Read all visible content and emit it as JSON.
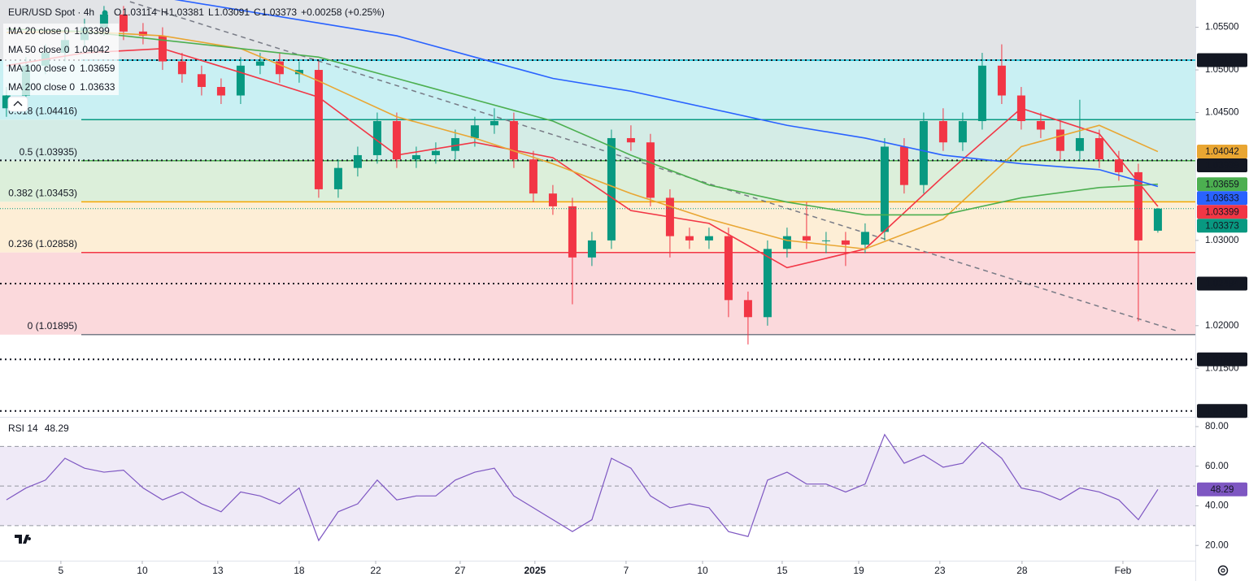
{
  "chart_data": [
    {
      "type": "candlestick",
      "title": "EUR/USD Spot · 4h",
      "ohlc_labels": [
        "O",
        "H",
        "L",
        "C"
      ],
      "change": "+0.00258 (+0.25%)",
      "x": [
        0,
        1,
        2,
        3,
        4,
        5,
        6,
        7,
        8,
        9,
        10,
        11,
        12,
        13,
        14,
        15,
        16,
        17,
        18,
        19,
        20,
        21,
        22,
        23,
        24,
        25,
        26,
        27,
        28,
        29,
        30,
        31,
        32,
        33,
        34,
        35,
        36,
        37,
        38,
        39,
        40,
        41,
        42,
        43,
        44,
        45,
        46,
        47,
        48,
        49,
        50,
        51,
        52,
        53,
        54,
        55,
        56,
        57,
        58,
        59
      ],
      "open": [
        1.0455,
        1.047,
        1.0505,
        1.052,
        1.0535,
        1.055,
        1.0565,
        1.0545,
        1.054,
        1.051,
        1.0495,
        1.048,
        1.047,
        1.0505,
        1.051,
        1.0495,
        1.05,
        1.036,
        1.0385,
        1.04,
        1.044,
        1.0395,
        1.04,
        1.0405,
        1.042,
        1.0435,
        1.044,
        1.0395,
        1.0355,
        1.034,
        1.028,
        1.03,
        1.042,
        1.0415,
        1.035,
        1.0305,
        1.03,
        1.0305,
        1.023,
        1.021,
        1.029,
        1.0305,
        1.03,
        1.03,
        1.0295,
        1.031,
        1.041,
        1.0365,
        1.044,
        1.0415,
        1.044,
        1.0505,
        1.047,
        1.044,
        1.043,
        1.0405,
        1.042,
        1.0395,
        1.038,
        1.03114
      ],
      "high": [
        1.048,
        1.0515,
        1.053,
        1.0545,
        1.056,
        1.0575,
        1.0575,
        1.0555,
        1.055,
        1.052,
        1.0505,
        1.049,
        1.0515,
        1.052,
        1.052,
        1.051,
        1.051,
        1.0395,
        1.041,
        1.045,
        1.045,
        1.041,
        1.0415,
        1.043,
        1.0445,
        1.0455,
        1.045,
        1.0405,
        1.0365,
        1.035,
        1.031,
        1.043,
        1.0435,
        1.0425,
        1.036,
        1.0315,
        1.0315,
        1.0315,
        1.024,
        1.03,
        1.0315,
        1.0345,
        1.031,
        1.031,
        1.032,
        1.042,
        1.042,
        1.045,
        1.0455,
        1.045,
        1.052,
        1.053,
        1.048,
        1.045,
        1.044,
        1.0465,
        1.043,
        1.0405,
        1.039,
        1.03381
      ],
      "low": [
        1.0445,
        1.046,
        1.0495,
        1.051,
        1.0525,
        1.054,
        1.0535,
        1.053,
        1.05,
        1.0485,
        1.047,
        1.046,
        1.046,
        1.0495,
        1.0485,
        1.0485,
        1.035,
        1.035,
        1.0375,
        1.039,
        1.0385,
        1.0385,
        1.039,
        1.0395,
        1.041,
        1.0425,
        1.0385,
        1.0345,
        1.033,
        1.0225,
        1.027,
        1.029,
        1.0405,
        1.034,
        1.028,
        1.029,
        1.029,
        1.021,
        1.0178,
        1.02,
        1.028,
        1.029,
        1.0285,
        1.027,
        1.0285,
        1.03,
        1.0355,
        1.0355,
        1.0405,
        1.0405,
        1.043,
        1.046,
        1.043,
        1.042,
        1.0395,
        1.0395,
        1.0385,
        1.037,
        1.0205,
        1.03091
      ],
      "close": [
        1.047,
        1.0505,
        1.052,
        1.0535,
        1.055,
        1.0565,
        1.0545,
        1.054,
        1.051,
        1.0495,
        1.048,
        1.047,
        1.0505,
        1.051,
        1.0495,
        1.05,
        1.036,
        1.0385,
        1.04,
        1.044,
        1.0395,
        1.04,
        1.0405,
        1.042,
        1.0435,
        1.044,
        1.0395,
        1.0355,
        1.034,
        1.028,
        1.03,
        1.042,
        1.0415,
        1.035,
        1.0305,
        1.03,
        1.0305,
        1.023,
        1.021,
        1.029,
        1.0305,
        1.03,
        1.03,
        1.0295,
        1.031,
        1.041,
        1.0365,
        1.044,
        1.0415,
        1.044,
        1.0505,
        1.047,
        1.044,
        1.043,
        1.0405,
        1.042,
        1.0395,
        1.038,
        1.03,
        1.03373
      ],
      "up_color": "#089981",
      "down_color": "#f23645",
      "xlim": [
        -0.33,
        60.92
      ],
      "ylim": [
        1.0094,
        1.0582
      ],
      "xticks": [
        {
          "value": 2.79,
          "label": "5"
        },
        {
          "value": 6.96,
          "label": "10"
        },
        {
          "value": 10.83,
          "label": "13"
        },
        {
          "value": 15,
          "label": "18"
        },
        {
          "value": 18.92,
          "label": "22"
        },
        {
          "value": 23.25,
          "label": "27"
        },
        {
          "value": 27.08,
          "label": "2025",
          "bold": true
        },
        {
          "value": 31.75,
          "label": "7"
        },
        {
          "value": 35.67,
          "label": "10"
        },
        {
          "value": 39.75,
          "label": "15"
        },
        {
          "value": 43.67,
          "label": "19"
        },
        {
          "value": 47.83,
          "label": "23"
        },
        {
          "value": 52.04,
          "label": "28"
        },
        {
          "value": 57.21,
          "label": "Feb"
        }
      ],
      "yticks": [
        {
          "value": 1.055,
          "label": "1.05500"
        },
        {
          "value": 1.05,
          "label": "1.05000"
        },
        {
          "value": 1.045,
          "label": "1.04500"
        },
        {
          "value": 1.03,
          "label": "1.03000"
        },
        {
          "value": 1.02,
          "label": "1.02000"
        },
        {
          "value": 1.015,
          "label": "1.01500"
        }
      ],
      "series": [
        {
          "name": "MA 20 close 0",
          "color": "#f23645",
          "x": [
            0,
            4,
            8,
            12,
            16,
            20,
            24,
            28,
            32,
            36,
            40,
            44,
            48,
            52,
            56,
            59
          ],
          "values": [
            1.0505,
            1.052,
            1.0525,
            1.0497,
            1.0468,
            1.04,
            1.0415,
            1.0397,
            1.0335,
            1.032,
            1.0268,
            1.029,
            1.0375,
            1.0455,
            1.0425,
            1.03399
          ]
        },
        {
          "name": "MA 50 close 0",
          "color": "#e9a632",
          "x": [
            0,
            4,
            8,
            12,
            16,
            20,
            24,
            28,
            32,
            36,
            40,
            44,
            48,
            52,
            56,
            59
          ],
          "values": [
            1.0544,
            1.0545,
            1.054,
            1.0525,
            1.0487,
            1.0445,
            1.042,
            1.039,
            1.0355,
            1.0325,
            1.03,
            1.029,
            1.0325,
            1.041,
            1.0435,
            1.04042
          ]
        },
        {
          "name": "MA 100 close 0",
          "color": "#4caf50",
          "x": [
            0,
            4,
            8,
            12,
            16,
            20,
            24,
            28,
            32,
            36,
            40,
            44,
            48,
            52,
            56,
            59
          ],
          "values": [
            1.0548,
            1.0545,
            1.0535,
            1.0525,
            1.0515,
            1.049,
            1.0465,
            1.044,
            1.04,
            1.0365,
            1.0345,
            1.033,
            1.033,
            1.035,
            1.0362,
            1.03659
          ]
        },
        {
          "name": "MA 200 close 0",
          "color": "#2962ff",
          "x": [
            8,
            12,
            16,
            20,
            24,
            28,
            32,
            36,
            40,
            44,
            48,
            52,
            56,
            59
          ],
          "values": [
            1.0585,
            1.057,
            1.0555,
            1.054,
            1.0515,
            1.049,
            1.0475,
            1.0455,
            1.0435,
            1.042,
            1.04,
            1.039,
            1.0383,
            1.03633
          ]
        }
      ],
      "fib_above_fill": "#e2e4e7",
      "fib": [
        {
          "value": 1.05115,
          "color": "#00bcd4",
          "fill": "#c9f0f3"
        },
        {
          "value": 1.04416,
          "label": "0.618 (1.04416)",
          "color": "#089981",
          "fill": "#d4ece6"
        },
        {
          "value": 1.03935,
          "label": "0.5 (1.03935)",
          "color": "#4caf50",
          "fill": "#dcefda"
        },
        {
          "value": 1.03453,
          "label": "0.382 (1.03453)",
          "color": "#f7a600",
          "fill": "#fdeed6"
        },
        {
          "value": 1.02858,
          "label": "0.236 (1.02858)",
          "color": "#f23645",
          "fill": "#fbd9dc"
        },
        {
          "value": 1.01895,
          "label": "0 (1.01895)",
          "color": "#787b86"
        }
      ],
      "levels": [
        1.05115,
        1.03939,
        1.02494,
        1.01605,
        {
          "value": 1.01,
          "label": "1.01000"
        }
      ],
      "trendline": {
        "x": [
          6.33,
          60.08
        ],
        "y": [
          1.058,
          1.01931
        ]
      }
    },
    {
      "type": "line",
      "title": "RSI 14",
      "x": [
        0,
        1,
        2,
        3,
        4,
        5,
        6,
        7,
        8,
        9,
        10,
        11,
        12,
        13,
        14,
        15,
        16,
        17,
        18,
        19,
        20,
        21,
        22,
        23,
        24,
        25,
        26,
        27,
        28,
        29,
        30,
        31,
        32,
        33,
        34,
        35,
        36,
        37,
        38,
        39,
        40,
        41,
        42,
        43,
        44,
        45,
        46,
        47,
        48,
        49,
        50,
        51,
        52,
        53,
        54,
        55,
        56,
        57,
        58,
        59
      ],
      "values": [
        43,
        49,
        53,
        64,
        59,
        57,
        58,
        49,
        43,
        47,
        41,
        37,
        47,
        45,
        41,
        49,
        22.5,
        37,
        41,
        53,
        43,
        45,
        45,
        53,
        57,
        59,
        45,
        39,
        33,
        27,
        33,
        64,
        59,
        45,
        39,
        41,
        39,
        27,
        24.5,
        53,
        57,
        51,
        51,
        47,
        51,
        76,
        61.5,
        65.6,
        59.5,
        61.5,
        72,
        64,
        49,
        47,
        43,
        49,
        47,
        43,
        33,
        48.29
      ],
      "color": "#7e57c2",
      "band_fill": "#efeaf7",
      "xlim": [
        -0.33,
        60.92
      ],
      "ylim": [
        12.3,
        84.1
      ],
      "yticks": [
        {
          "value": 80,
          "label": "80.00"
        },
        {
          "value": 60,
          "label": "60.00"
        },
        {
          "value": 40,
          "label": "40.00"
        },
        {
          "value": 20,
          "label": "20.00"
        }
      ],
      "levels": [
        70,
        50,
        30
      ]
    }
  ]
}
